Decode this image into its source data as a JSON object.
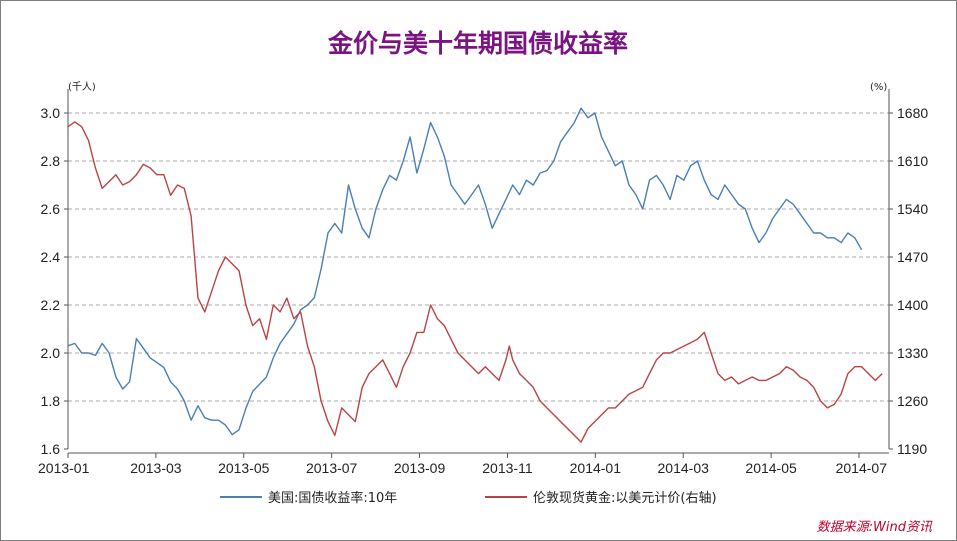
{
  "chart_data": {
    "type": "line",
    "title": "金价与美十年期国债收益率",
    "left_axis": {
      "unit": "(千人)",
      "ticks": [
        "3.0",
        "2.8",
        "2.6",
        "2.4",
        "2.2",
        "2.0",
        "1.8",
        "1.6"
      ],
      "ylim": [
        1.6,
        3.0
      ]
    },
    "right_axis": {
      "unit": "(%)",
      "ticks": [
        "1680",
        "1610",
        "1540",
        "1470",
        "1400",
        "1330",
        "1260",
        "1190"
      ],
      "ylim": [
        1190,
        1680
      ]
    },
    "x_ticks": [
      "2013-01",
      "2013-03",
      "2013-05",
      "2013-07",
      "2013-09",
      "2013-11",
      "2014-01",
      "2014-03",
      "2014-05",
      "2014-07"
    ],
    "grid": true,
    "legend_position": "bottom",
    "series": [
      {
        "name": "美国:国债收益率:10年",
        "axis": "left",
        "color": "#4a7eb5",
        "points": [
          [
            0,
            2.03
          ],
          [
            1,
            2.04
          ],
          [
            2,
            2.0
          ],
          [
            3,
            2.0
          ],
          [
            4,
            1.99
          ],
          [
            5,
            2.04
          ],
          [
            6,
            2.0
          ],
          [
            7,
            1.9
          ],
          [
            8,
            1.85
          ],
          [
            9,
            1.88
          ],
          [
            10,
            2.06
          ],
          [
            11,
            2.02
          ],
          [
            12,
            1.98
          ],
          [
            13,
            1.96
          ],
          [
            14,
            1.94
          ],
          [
            15,
            1.88
          ],
          [
            16,
            1.85
          ],
          [
            17,
            1.8
          ],
          [
            18,
            1.72
          ],
          [
            19,
            1.78
          ],
          [
            20,
            1.73
          ],
          [
            21,
            1.72
          ],
          [
            22,
            1.72
          ],
          [
            23,
            1.7
          ],
          [
            24,
            1.66
          ],
          [
            25,
            1.68
          ],
          [
            26,
            1.77
          ],
          [
            27,
            1.84
          ],
          [
            28,
            1.87
          ],
          [
            29,
            1.9
          ],
          [
            30,
            1.98
          ],
          [
            31,
            2.04
          ],
          [
            32,
            2.08
          ],
          [
            33,
            2.12
          ],
          [
            34,
            2.18
          ],
          [
            35,
            2.2
          ],
          [
            36,
            2.23
          ],
          [
            37,
            2.35
          ],
          [
            38,
            2.5
          ],
          [
            39,
            2.54
          ],
          [
            40,
            2.5
          ],
          [
            41,
            2.7
          ],
          [
            42,
            2.6
          ],
          [
            43,
            2.52
          ],
          [
            44,
            2.48
          ],
          [
            45,
            2.6
          ],
          [
            46,
            2.68
          ],
          [
            47,
            2.74
          ],
          [
            48,
            2.72
          ],
          [
            49,
            2.8
          ],
          [
            50,
            2.9
          ],
          [
            51,
            2.75
          ],
          [
            52,
            2.85
          ],
          [
            53,
            2.96
          ],
          [
            54,
            2.9
          ],
          [
            55,
            2.82
          ],
          [
            56,
            2.7
          ],
          [
            57,
            2.66
          ],
          [
            58,
            2.62
          ],
          [
            59,
            2.66
          ],
          [
            60,
            2.7
          ],
          [
            61,
            2.62
          ],
          [
            62,
            2.52
          ],
          [
            63,
            2.58
          ],
          [
            64,
            2.64
          ],
          [
            65,
            2.7
          ],
          [
            66,
            2.66
          ],
          [
            67,
            2.72
          ],
          [
            68,
            2.7
          ],
          [
            69,
            2.75
          ],
          [
            70,
            2.76
          ],
          [
            71,
            2.8
          ],
          [
            72,
            2.88
          ],
          [
            73,
            2.92
          ],
          [
            74,
            2.96
          ],
          [
            75,
            3.02
          ],
          [
            76,
            2.98
          ],
          [
            77,
            3.0
          ],
          [
            78,
            2.9
          ],
          [
            79,
            2.84
          ],
          [
            80,
            2.78
          ],
          [
            81,
            2.8
          ],
          [
            82,
            2.7
          ],
          [
            83,
            2.66
          ],
          [
            84,
            2.6
          ],
          [
            85,
            2.72
          ],
          [
            86,
            2.74
          ],
          [
            87,
            2.7
          ],
          [
            88,
            2.64
          ],
          [
            89,
            2.74
          ],
          [
            90,
            2.72
          ],
          [
            91,
            2.78
          ],
          [
            92,
            2.8
          ],
          [
            93,
            2.72
          ],
          [
            94,
            2.66
          ],
          [
            95,
            2.64
          ],
          [
            96,
            2.7
          ],
          [
            97,
            2.66
          ],
          [
            98,
            2.62
          ],
          [
            99,
            2.6
          ],
          [
            100,
            2.52
          ],
          [
            101,
            2.46
          ],
          [
            102,
            2.5
          ],
          [
            103,
            2.56
          ],
          [
            104,
            2.6
          ],
          [
            105,
            2.64
          ],
          [
            106,
            2.62
          ],
          [
            107,
            2.58
          ],
          [
            108,
            2.54
          ],
          [
            109,
            2.5
          ],
          [
            110,
            2.5
          ],
          [
            111,
            2.48
          ],
          [
            112,
            2.48
          ],
          [
            113,
            2.46
          ],
          [
            114,
            2.5
          ],
          [
            115,
            2.48
          ],
          [
            116,
            2.43
          ]
        ]
      },
      {
        "name": "伦敦现货黄金:以美元计价(右轴)",
        "axis": "right",
        "color": "#b94444",
        "points": [
          [
            0,
            1660
          ],
          [
            1,
            1667
          ],
          [
            2,
            1660
          ],
          [
            3,
            1640
          ],
          [
            4,
            1600
          ],
          [
            5,
            1570
          ],
          [
            6,
            1580
          ],
          [
            7,
            1590
          ],
          [
            8,
            1575
          ],
          [
            9,
            1580
          ],
          [
            10,
            1590
          ],
          [
            11,
            1605
          ],
          [
            12,
            1600
          ],
          [
            13,
            1590
          ],
          [
            14,
            1590
          ],
          [
            15,
            1560
          ],
          [
            16,
            1575
          ],
          [
            17,
            1570
          ],
          [
            18,
            1530
          ],
          [
            19,
            1410
          ],
          [
            20,
            1390
          ],
          [
            21,
            1420
          ],
          [
            22,
            1450
          ],
          [
            23,
            1470
          ],
          [
            24,
            1460
          ],
          [
            25,
            1450
          ],
          [
            26,
            1400
          ],
          [
            27,
            1370
          ],
          [
            28,
            1380
          ],
          [
            29,
            1350
          ],
          [
            30,
            1400
          ],
          [
            31,
            1390
          ],
          [
            32,
            1410
          ],
          [
            33,
            1380
          ],
          [
            34,
            1390
          ],
          [
            35,
            1340
          ],
          [
            36,
            1310
          ],
          [
            37,
            1260
          ],
          [
            38,
            1230
          ],
          [
            39,
            1210
          ],
          [
            40,
            1250
          ],
          [
            41,
            1240
          ],
          [
            42,
            1230
          ],
          [
            43,
            1280
          ],
          [
            44,
            1300
          ],
          [
            45,
            1310
          ],
          [
            46,
            1320
          ],
          [
            47,
            1300
          ],
          [
            48,
            1280
          ],
          [
            49,
            1310
          ],
          [
            50,
            1330
          ],
          [
            51,
            1360
          ],
          [
            52,
            1360
          ],
          [
            53,
            1400
          ],
          [
            54,
            1380
          ],
          [
            55,
            1370
          ],
          [
            56,
            1350
          ],
          [
            57,
            1330
          ],
          [
            58,
            1320
          ],
          [
            59,
            1310
          ],
          [
            60,
            1300
          ],
          [
            61,
            1310
          ],
          [
            62,
            1300
          ],
          [
            63,
            1290
          ],
          [
            64,
            1320
          ],
          [
            64.5,
            1340
          ],
          [
            65,
            1320
          ],
          [
            66,
            1300
          ],
          [
            67,
            1290
          ],
          [
            68,
            1280
          ],
          [
            69,
            1260
          ],
          [
            70,
            1250
          ],
          [
            71,
            1240
          ],
          [
            72,
            1230
          ],
          [
            73,
            1220
          ],
          [
            74,
            1210
          ],
          [
            75,
            1200
          ],
          [
            76,
            1220
          ],
          [
            77,
            1230
          ],
          [
            78,
            1240
          ],
          [
            79,
            1250
          ],
          [
            80,
            1250
          ],
          [
            81,
            1260
          ],
          [
            82,
            1270
          ],
          [
            83,
            1275
          ],
          [
            84,
            1280
          ],
          [
            85,
            1300
          ],
          [
            86,
            1320
          ],
          [
            87,
            1330
          ],
          [
            88,
            1330
          ],
          [
            89,
            1335
          ],
          [
            90,
            1340
          ],
          [
            91,
            1345
          ],
          [
            92,
            1350
          ],
          [
            93,
            1360
          ],
          [
            94,
            1330
          ],
          [
            95,
            1300
          ],
          [
            96,
            1290
          ],
          [
            97,
            1295
          ],
          [
            98,
            1285
          ],
          [
            99,
            1290
          ],
          [
            100,
            1295
          ],
          [
            101,
            1290
          ],
          [
            102,
            1290
          ],
          [
            103,
            1295
          ],
          [
            104,
            1300
          ],
          [
            105,
            1310
          ],
          [
            106,
            1305
          ],
          [
            107,
            1295
          ],
          [
            108,
            1290
          ],
          [
            109,
            1280
          ],
          [
            110,
            1260
          ],
          [
            111,
            1250
          ],
          [
            112,
            1255
          ],
          [
            113,
            1270
          ],
          [
            114,
            1300
          ],
          [
            115,
            1310
          ],
          [
            116,
            1310
          ],
          [
            117,
            1300
          ],
          [
            118,
            1290
          ],
          [
            119,
            1300
          ]
        ]
      }
    ]
  },
  "source_note": "数据来源:Wind资讯",
  "colors": {
    "title": "#7a1480",
    "grid": "#aaaaaa",
    "axis": "#555555"
  }
}
